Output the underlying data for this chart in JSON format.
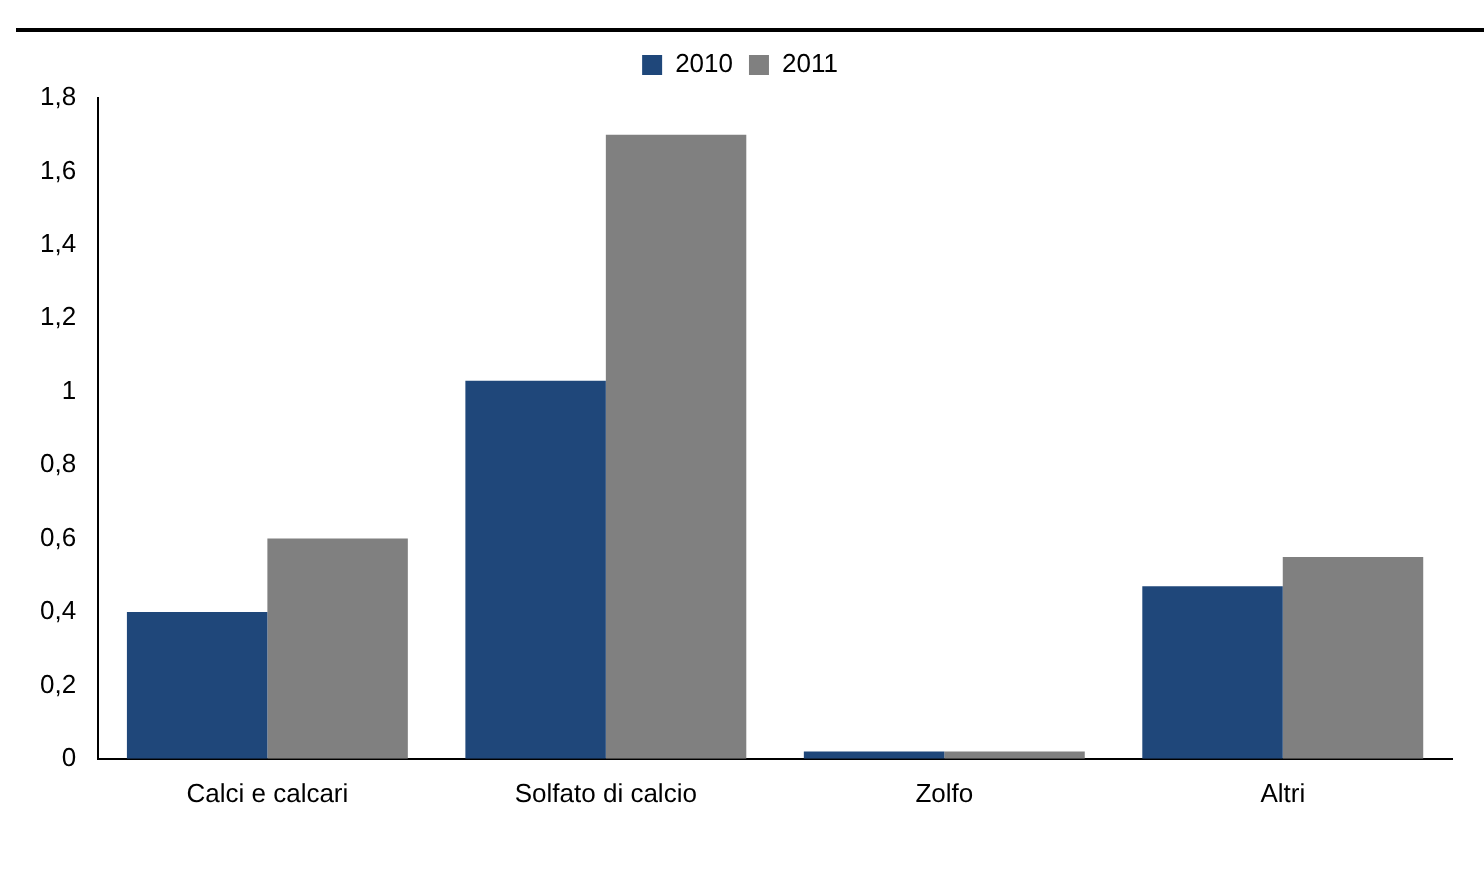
{
  "chart_data": {
    "type": "bar",
    "categories": [
      "Calci e calcari",
      "Solfato di calcio",
      "Zolfo",
      "Altri"
    ],
    "series": [
      {
        "name": "2010",
        "color": "#1f477a",
        "values": [
          0.4,
          1.03,
          0.02,
          0.47
        ]
      },
      {
        "name": "2011",
        "color": "#808080",
        "values": [
          0.6,
          1.7,
          0.02,
          0.55
        ]
      }
    ],
    "ylim": [
      0,
      1.8
    ],
    "yticks": [
      0,
      {
        "value": 0.2,
        "label": "0,2"
      },
      {
        "value": 0.4,
        "label": "0,4"
      },
      {
        "value": 0.6,
        "label": "0,6"
      },
      {
        "value": 0.8,
        "label": "0,8"
      },
      1,
      {
        "value": 1.2,
        "label": "1,2"
      },
      {
        "value": 1.4,
        "label": "1,4"
      },
      {
        "value": 1.6,
        "label": "1,6"
      },
      {
        "value": 1.8,
        "label": "1,8"
      }
    ],
    "grid": false,
    "legend": "top"
  }
}
